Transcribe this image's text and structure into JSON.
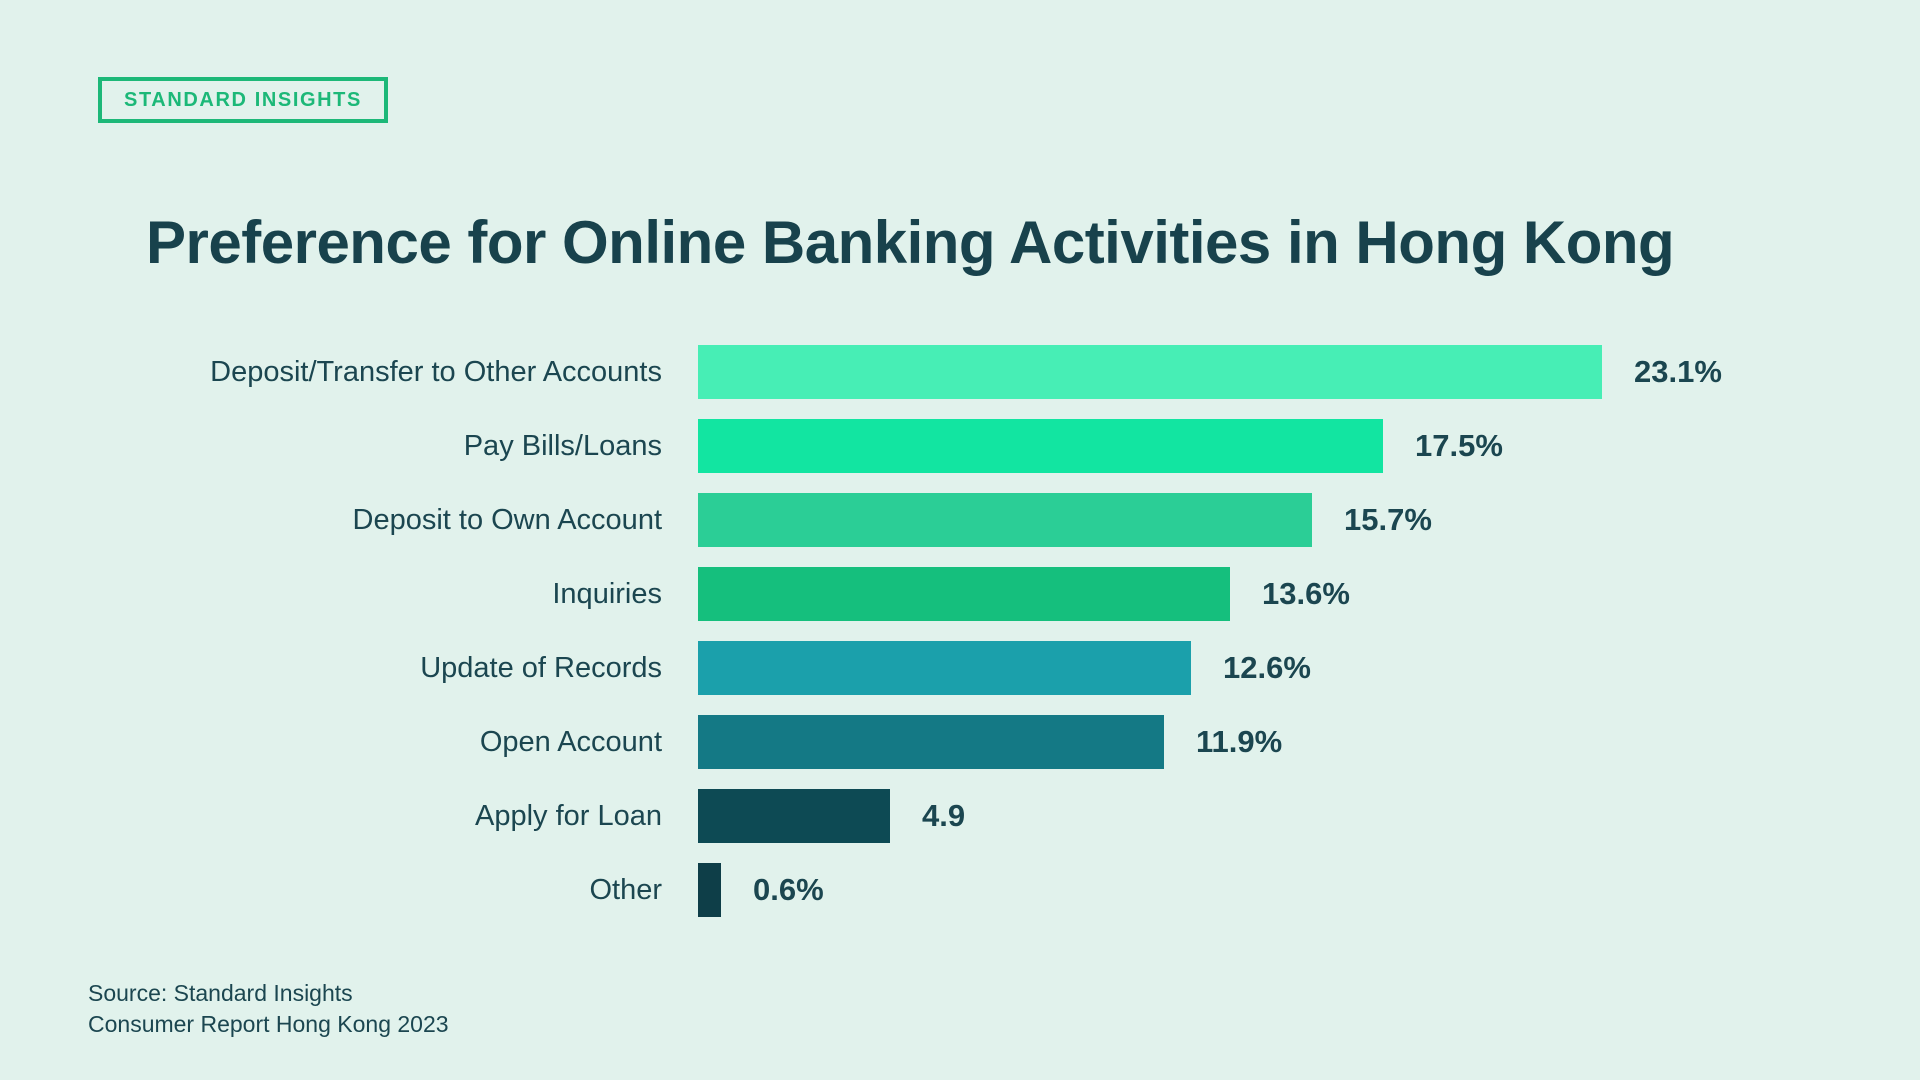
{
  "page": {
    "background_color": "#E1F2EC",
    "text_color": "#1B4650"
  },
  "logo": {
    "label": "STANDARD INSIGHTS",
    "color": "#1CB878"
  },
  "title": "Preference for Online Banking Activities in Hong Kong",
  "source": {
    "line1": "Source: Standard Insights",
    "line2": "Consumer Report Hong Kong 2023"
  },
  "chart_data": {
    "type": "bar",
    "orientation": "horizontal",
    "title": "Preference for Online Banking Activities in Hong Kong",
    "categories": [
      "Deposit/Transfer to Other Accounts",
      "Pay Bills/Loans",
      "Deposit to Own Account",
      "Inquiries",
      "Update of Records",
      "Open Account",
      "Apply for Loan",
      "Other"
    ],
    "values": [
      23.1,
      17.5,
      15.7,
      13.6,
      12.6,
      11.9,
      4.9,
      0.6
    ],
    "value_labels": [
      "23.1%",
      "17.5%",
      "15.7%",
      "13.6%",
      "12.6%",
      "11.9%",
      "4.9",
      "0.6%"
    ],
    "bar_colors": [
      "#47EEB5",
      "#12E5A1",
      "#2BCE96",
      "#15BF7D",
      "#1BA0AB",
      "#147985",
      "#0D4A54",
      "#0E3E48"
    ],
    "xlim": [
      0,
      24
    ],
    "unit": "percent",
    "grid": false,
    "legend": false,
    "value_label_position": "right-of-bar"
  }
}
